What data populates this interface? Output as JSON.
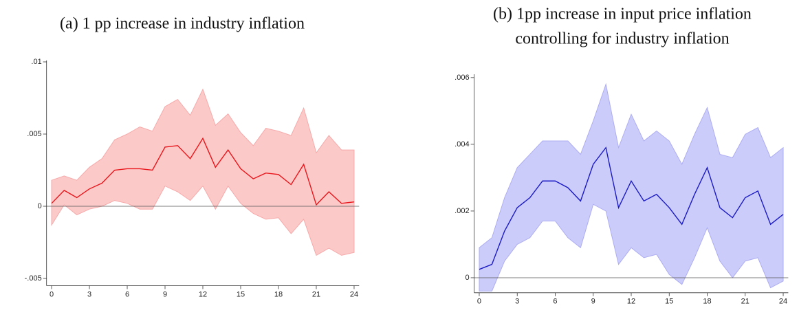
{
  "chart_data": [
    {
      "type": "line",
      "title": [
        "(a) 1 pp increase in industry inflation"
      ],
      "x": [
        0,
        1,
        2,
        3,
        4,
        5,
        6,
        7,
        8,
        9,
        10,
        11,
        12,
        13,
        14,
        15,
        16,
        17,
        18,
        19,
        20,
        21,
        22,
        23,
        24
      ],
      "series": [
        {
          "color": "#e8161b",
          "band_color": "#fcc9c9",
          "band_edge": "#f6a9a9",
          "values": [
            0.0002,
            0.0011,
            0.0006,
            0.0012,
            0.0016,
            0.0025,
            0.0026,
            0.0026,
            0.0025,
            0.0041,
            0.0042,
            0.0033,
            0.0047,
            0.0027,
            0.0039,
            0.0026,
            0.0019,
            0.0023,
            0.0022,
            0.0015,
            0.0029,
            0.0001,
            0.001,
            0.0002,
            0.0003
          ],
          "upper": [
            0.0018,
            0.0021,
            0.0018,
            0.0027,
            0.0033,
            0.0046,
            0.005,
            0.0055,
            0.0052,
            0.0069,
            0.0074,
            0.0063,
            0.0081,
            0.0056,
            0.0064,
            0.0051,
            0.0042,
            0.0054,
            0.0052,
            0.0049,
            0.0068,
            0.0037,
            0.0049,
            0.0039,
            0.0039
          ],
          "lower": [
            -0.0013,
            0.0001,
            -0.0006,
            -0.0002,
            0,
            0.0004,
            0.0002,
            -0.0002,
            -0.0002,
            0.0014,
            0.001,
            0.0004,
            0.0014,
            -0.0002,
            0.0014,
            0.0002,
            -0.0005,
            -0.0009,
            -0.0008,
            -0.0019,
            -0.0009,
            -0.0034,
            -0.0029,
            -0.0034,
            -0.0032
          ]
        }
      ],
      "xlim": [
        -0.4,
        24.4
      ],
      "xticks": [
        0,
        3,
        6,
        9,
        12,
        15,
        18,
        21,
        24
      ],
      "ylim": [
        -0.0055,
        0.0101
      ],
      "yticks": [
        {
          "value": -0.005,
          "label": "-.005"
        },
        0,
        {
          "value": 0.005,
          "label": ".005"
        },
        {
          "value": 0.01,
          "label": ".01"
        }
      ]
    },
    {
      "type": "line",
      "title": [
        "(b) 1pp increase in input price inflation",
        "controlling for industry inflation"
      ],
      "x": [
        0,
        1,
        2,
        3,
        4,
        5,
        6,
        7,
        8,
        9,
        10,
        11,
        12,
        13,
        14,
        15,
        16,
        17,
        18,
        19,
        20,
        21,
        22,
        23,
        24
      ],
      "series": [
        {
          "color": "#1a1ac4",
          "band_color": "#ccccfa",
          "band_edge": "#adadf2",
          "values": [
            0.00025,
            0.0004,
            0.0014,
            0.0021,
            0.0024,
            0.0029,
            0.0029,
            0.0027,
            0.0023,
            0.0034,
            0.0039,
            0.0021,
            0.0029,
            0.0023,
            0.0025,
            0.0021,
            0.0016,
            0.0025,
            0.0033,
            0.0021,
            0.0018,
            0.0024,
            0.0026,
            0.0016,
            0.0019
          ],
          "upper": [
            0.0009,
            0.0012,
            0.0024,
            0.0033,
            0.0037,
            0.0041,
            0.0041,
            0.0041,
            0.0037,
            0.0047,
            0.0058,
            0.0039,
            0.0049,
            0.0041,
            0.0044,
            0.0041,
            0.0034,
            0.0043,
            0.0051,
            0.0037,
            0.0036,
            0.0043,
            0.0045,
            0.0036,
            0.0039
          ],
          "lower": [
            -0.0004,
            -0.0004,
            0.0005,
            0.001,
            0.0012,
            0.0017,
            0.0017,
            0.0012,
            0.0009,
            0.0022,
            0.002,
            0.0004,
            0.0009,
            0.0006,
            0.0007,
            0.0001,
            -0.0002,
            0.0006,
            0.0015,
            0.0005,
            0,
            0.0005,
            0.0006,
            -0.0003,
            -0.0001
          ]
        }
      ],
      "xlim": [
        -0.4,
        24.4
      ],
      "xticks": [
        0,
        3,
        6,
        9,
        12,
        15,
        18,
        21,
        24
      ],
      "ylim": [
        -0.00045,
        0.0061
      ],
      "yticks": [
        0,
        {
          "value": 0.002,
          "label": ".002"
        },
        {
          "value": 0.004,
          "label": ".004"
        },
        {
          "value": 0.006,
          "label": ".006"
        }
      ]
    }
  ]
}
